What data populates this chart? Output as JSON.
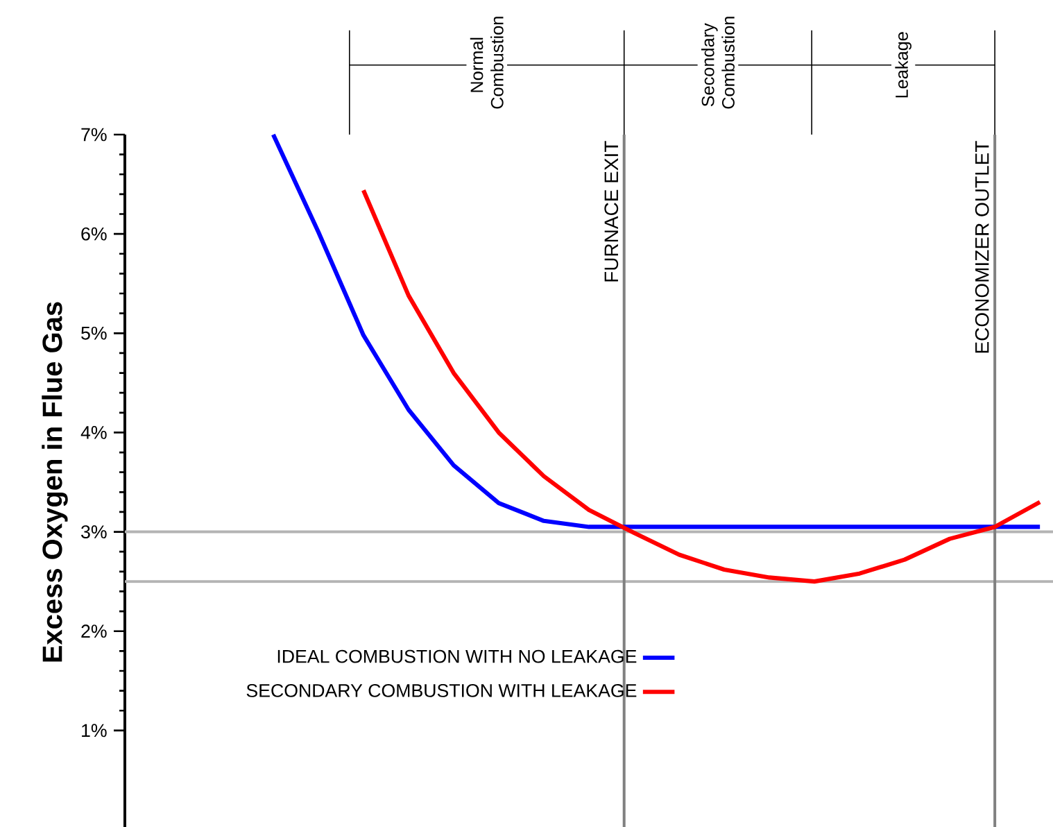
{
  "chart_data": {
    "type": "line",
    "ylabel": "Excess Oxygen in Flue Gas",
    "categories": [
      null,
      null,
      null,
      null,
      null,
      null,
      null,
      null,
      null,
      null,
      null,
      null,
      null,
      null,
      null,
      null,
      null,
      null
    ],
    "series": [
      {
        "name": "IDEAL COMBUSTION WITH NO LEAKAGE",
        "color": "#0000ff",
        "values": [
          7.0,
          6.02,
          4.98,
          4.23,
          3.67,
          3.29,
          3.11,
          3.05,
          3.05,
          3.05,
          3.05,
          3.05,
          3.05,
          3.05,
          3.05,
          3.05,
          3.05,
          3.05
        ]
      },
      {
        "name": "SECONDARY COMBUSTION WITH LEAKAGE",
        "color": "#ff0000",
        "values": [
          null,
          null,
          6.44,
          5.38,
          4.6,
          4.0,
          3.56,
          3.22,
          2.99,
          2.77,
          2.62,
          2.54,
          2.5,
          2.58,
          2.72,
          2.93,
          3.05,
          3.3
        ]
      }
    ],
    "ylim": [
      0,
      7
    ],
    "yticks": [
      {
        "value": 1,
        "label": "1%"
      },
      {
        "value": 2,
        "label": "2%"
      },
      {
        "value": 3,
        "label": "3%"
      },
      {
        "value": 4,
        "label": "4%"
      },
      {
        "value": 5,
        "label": "5%"
      },
      {
        "value": 6,
        "label": "6%"
      },
      {
        "value": 7,
        "label": "7%"
      }
    ],
    "tick_labels": "y",
    "ref_lines": [
      {
        "axis": "y",
        "value": 3,
        "color": "#b4b4b4"
      },
      {
        "axis": "y",
        "value": 2.5,
        "color": "#b4b4b4"
      }
    ],
    "annotations": [
      "FURNACE EXIT",
      "ECONOMIZER OUTLET",
      "Normal Combustion",
      "Secondary Combustion",
      "Leakage"
    ],
    "legend": "bottom",
    "marker": "none",
    "line_style": "solid",
    "grid": false
  }
}
